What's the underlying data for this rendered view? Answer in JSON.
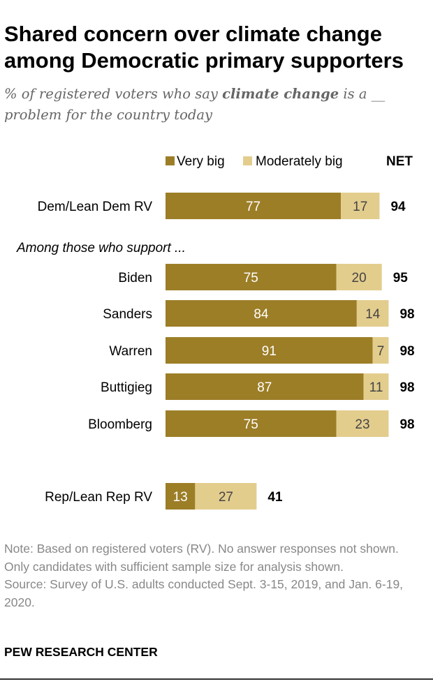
{
  "title": "Shared concern over climate change among Democratic primary supporters",
  "subtitle": {
    "before": "% of registered voters who say ",
    "emphasis": "climate change",
    "after": " is a __ problem for the country today"
  },
  "colors": {
    "very_big": "#9c7e27",
    "moderately_big": "#e3cd8d",
    "label_on_dark": "#ffffff",
    "label_on_light": "#444444"
  },
  "chart_data": {
    "type": "bar",
    "orientation": "horizontal",
    "stacked": true,
    "legend": [
      "Very big",
      "Moderately big"
    ],
    "net_header": "NET",
    "group_label": "Among those who support ...",
    "categories": [
      "Dem/Lean Dem RV",
      "Biden",
      "Sanders",
      "Warren",
      "Buttigieg",
      "Bloomberg",
      "Rep/Lean Rep RV"
    ],
    "series": [
      {
        "name": "Very big",
        "values": [
          77,
          75,
          84,
          91,
          87,
          75,
          13
        ]
      },
      {
        "name": "Moderately big",
        "values": [
          17,
          20,
          14,
          7,
          11,
          23,
          27
        ]
      }
    ],
    "net": [
      94,
      95,
      98,
      98,
      98,
      98,
      41
    ],
    "xlim": [
      0,
      100
    ]
  },
  "notes": [
    "Note: Based on registered voters (RV). No answer responses not shown. Only candidates with sufficient sample size for analysis shown.",
    "Source: Survey of U.S. adults conducted Sept. 3-15, 2019, and Jan. 6-19, 2020."
  ],
  "brand": "PEW RESEARCH CENTER"
}
